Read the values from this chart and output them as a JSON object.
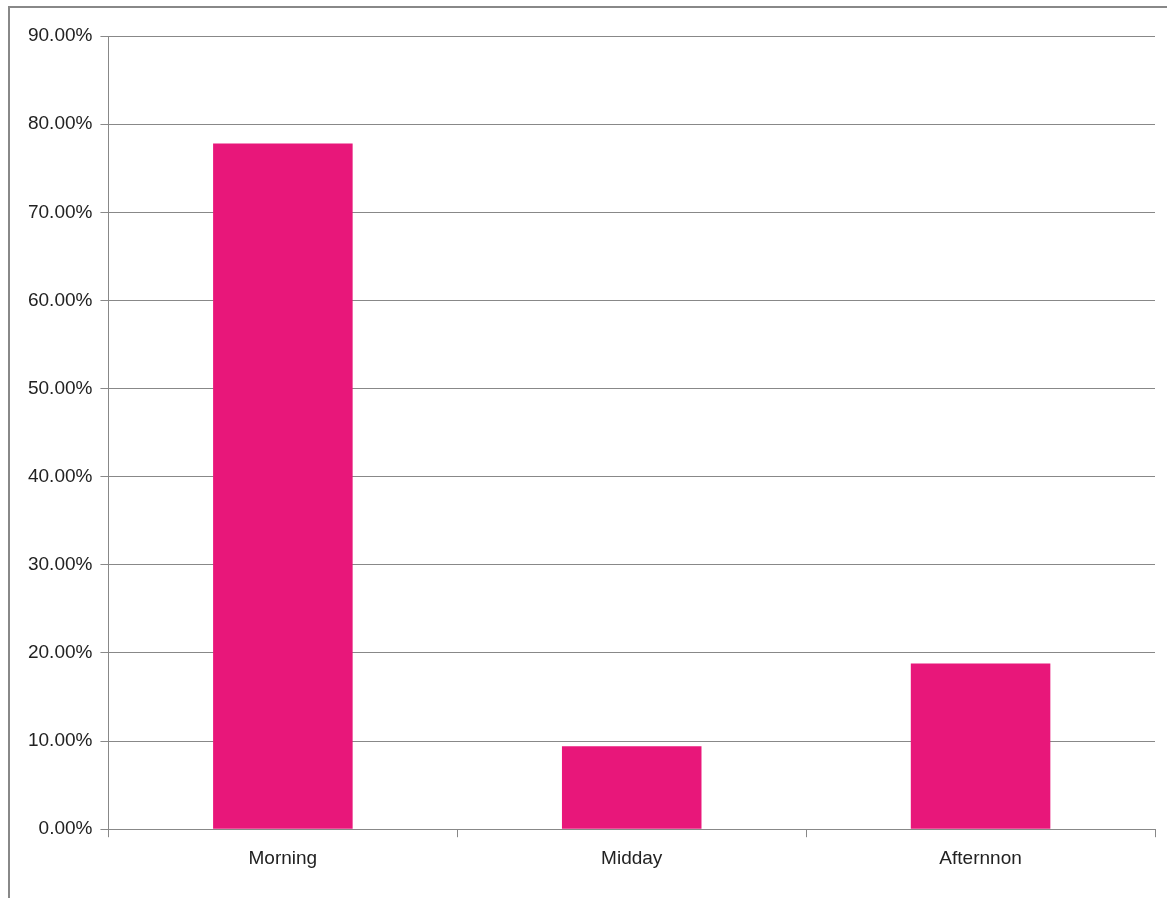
{
  "chart_data": {
    "type": "bar",
    "categories": [
      "Morning",
      "Midday",
      "Afternnon"
    ],
    "values": [
      77.8,
      9.4,
      18.8
    ],
    "color": "#e8177a",
    "ylim": [
      0,
      90
    ],
    "yticks": [
      {
        "value": 0,
        "label": "0.00%"
      },
      {
        "value": 10,
        "label": "10.00%"
      },
      {
        "value": 20,
        "label": "20.00%"
      },
      {
        "value": 30,
        "label": "30.00%"
      },
      {
        "value": 40,
        "label": "40.00%"
      },
      {
        "value": 50,
        "label": "50.00%"
      },
      {
        "value": 60,
        "label": "60.00%"
      },
      {
        "value": 70,
        "label": "70.00%"
      },
      {
        "value": 80,
        "label": "80.00%"
      },
      {
        "value": 90,
        "label": "90.00%"
      }
    ],
    "grid": "y",
    "legend": false
  }
}
